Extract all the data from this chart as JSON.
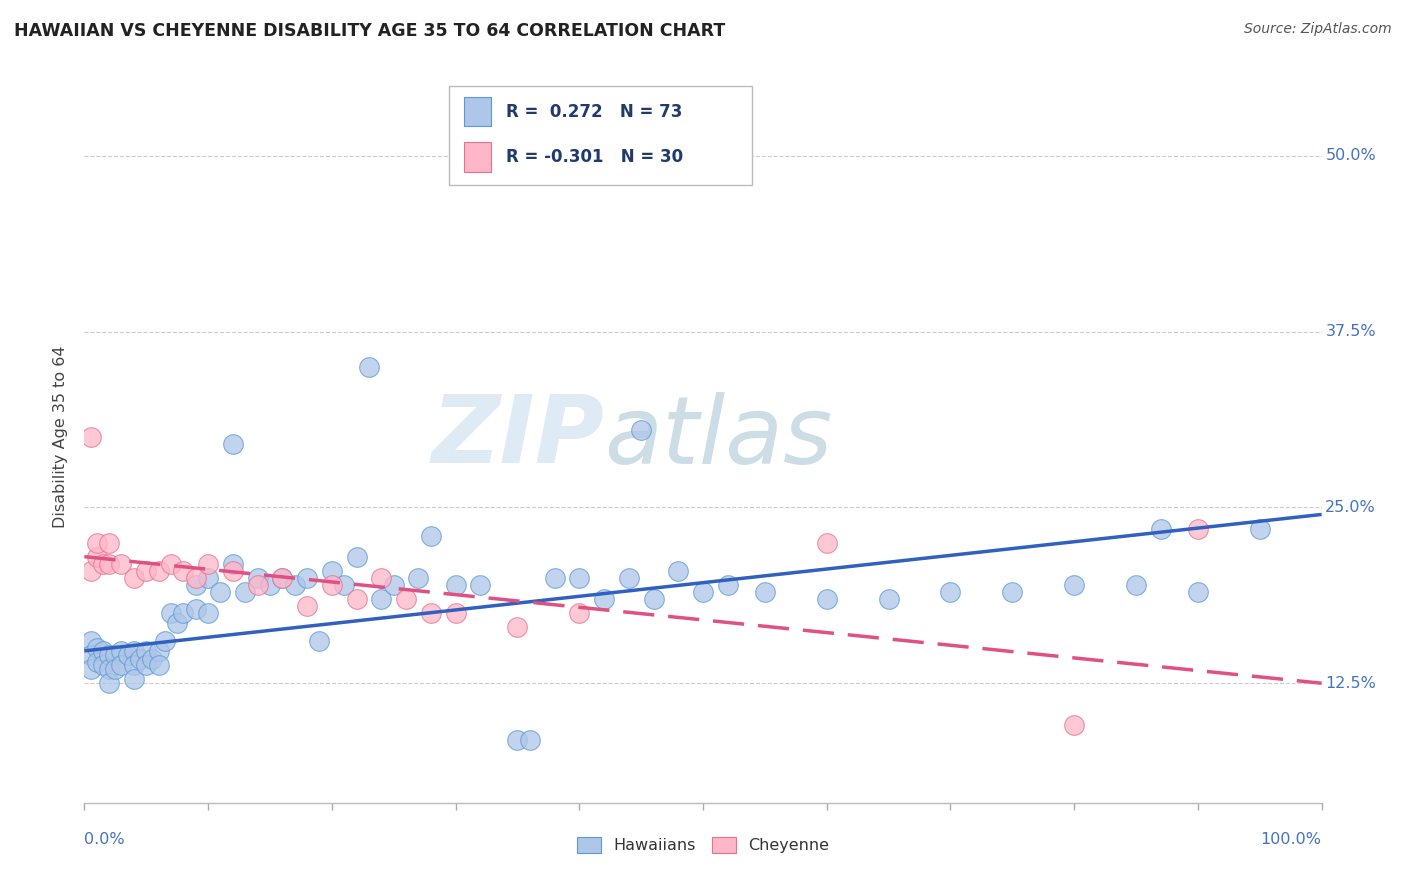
{
  "title": "HAWAIIAN VS CHEYENNE DISABILITY AGE 35 TO 64 CORRELATION CHART",
  "source": "Source: ZipAtlas.com",
  "ylabel": "Disability Age 35 to 64",
  "xlim": [
    0.0,
    1.0
  ],
  "ylim": [
    0.04,
    0.56
  ],
  "y_tick_vals": [
    0.125,
    0.25,
    0.375,
    0.5
  ],
  "y_tick_labels": [
    "12.5%",
    "25.0%",
    "37.5%",
    "50.0%"
  ],
  "hawaiian_R": 0.272,
  "hawaiian_N": 73,
  "cheyenne_R": -0.301,
  "cheyenne_N": 30,
  "hawaiian_color": "#AEC6E8",
  "hawaiian_edge": "#5B9BD5",
  "cheyenne_color": "#FFB6C8",
  "cheyenne_edge": "#E87090",
  "trend_blue": "#3060C0",
  "trend_pink": "#E05080",
  "watermark": "ZIPatlas",
  "bg": "#FFFFFF",
  "legend_text_color": "#1F3B6E",
  "tick_color": "#4472C4",
  "title_color": "#222222",
  "source_color": "#555555",
  "grid_color": "#CCCCCC",
  "hawaiian_x": [
    0.005,
    0.005,
    0.005,
    0.01,
    0.01,
    0.015,
    0.015,
    0.02,
    0.02,
    0.02,
    0.025,
    0.025,
    0.03,
    0.03,
    0.035,
    0.04,
    0.04,
    0.04,
    0.045,
    0.05,
    0.05,
    0.055,
    0.06,
    0.06,
    0.065,
    0.07,
    0.075,
    0.08,
    0.09,
    0.09,
    0.1,
    0.1,
    0.11,
    0.12,
    0.12,
    0.13,
    0.14,
    0.15,
    0.16,
    0.17,
    0.18,
    0.19,
    0.2,
    0.21,
    0.22,
    0.23,
    0.24,
    0.25,
    0.27,
    0.28,
    0.3,
    0.32,
    0.35,
    0.36,
    0.38,
    0.4,
    0.42,
    0.44,
    0.45,
    0.46,
    0.48,
    0.5,
    0.52,
    0.55,
    0.6,
    0.65,
    0.7,
    0.75,
    0.8,
    0.85,
    0.87,
    0.9,
    0.95
  ],
  "hawaiian_y": [
    0.155,
    0.145,
    0.135,
    0.15,
    0.14,
    0.148,
    0.138,
    0.145,
    0.135,
    0.125,
    0.145,
    0.135,
    0.148,
    0.138,
    0.145,
    0.148,
    0.138,
    0.128,
    0.142,
    0.148,
    0.138,
    0.142,
    0.148,
    0.138,
    0.155,
    0.175,
    0.168,
    0.175,
    0.178,
    0.195,
    0.175,
    0.2,
    0.19,
    0.21,
    0.295,
    0.19,
    0.2,
    0.195,
    0.2,
    0.195,
    0.2,
    0.155,
    0.205,
    0.195,
    0.215,
    0.35,
    0.185,
    0.195,
    0.2,
    0.23,
    0.195,
    0.195,
    0.085,
    0.085,
    0.2,
    0.2,
    0.185,
    0.2,
    0.305,
    0.185,
    0.205,
    0.19,
    0.195,
    0.19,
    0.185,
    0.185,
    0.19,
    0.19,
    0.195,
    0.195,
    0.235,
    0.19,
    0.235
  ],
  "cheyenne_x": [
    0.005,
    0.005,
    0.01,
    0.01,
    0.015,
    0.02,
    0.02,
    0.03,
    0.04,
    0.05,
    0.06,
    0.07,
    0.08,
    0.09,
    0.1,
    0.12,
    0.14,
    0.16,
    0.18,
    0.2,
    0.22,
    0.24,
    0.26,
    0.28,
    0.3,
    0.35,
    0.4,
    0.6,
    0.8,
    0.9
  ],
  "cheyenne_y": [
    0.205,
    0.3,
    0.215,
    0.225,
    0.21,
    0.21,
    0.225,
    0.21,
    0.2,
    0.205,
    0.205,
    0.21,
    0.205,
    0.2,
    0.21,
    0.205,
    0.195,
    0.2,
    0.18,
    0.195,
    0.185,
    0.2,
    0.185,
    0.175,
    0.175,
    0.165,
    0.175,
    0.225,
    0.095,
    0.235
  ],
  "haw_trend_x0": 0.0,
  "haw_trend_y0": 0.148,
  "haw_trend_x1": 1.0,
  "haw_trend_y1": 0.245,
  "chey_trend_x0": 0.0,
  "chey_trend_y0": 0.215,
  "chey_trend_x1": 1.0,
  "chey_trend_y1": 0.125
}
